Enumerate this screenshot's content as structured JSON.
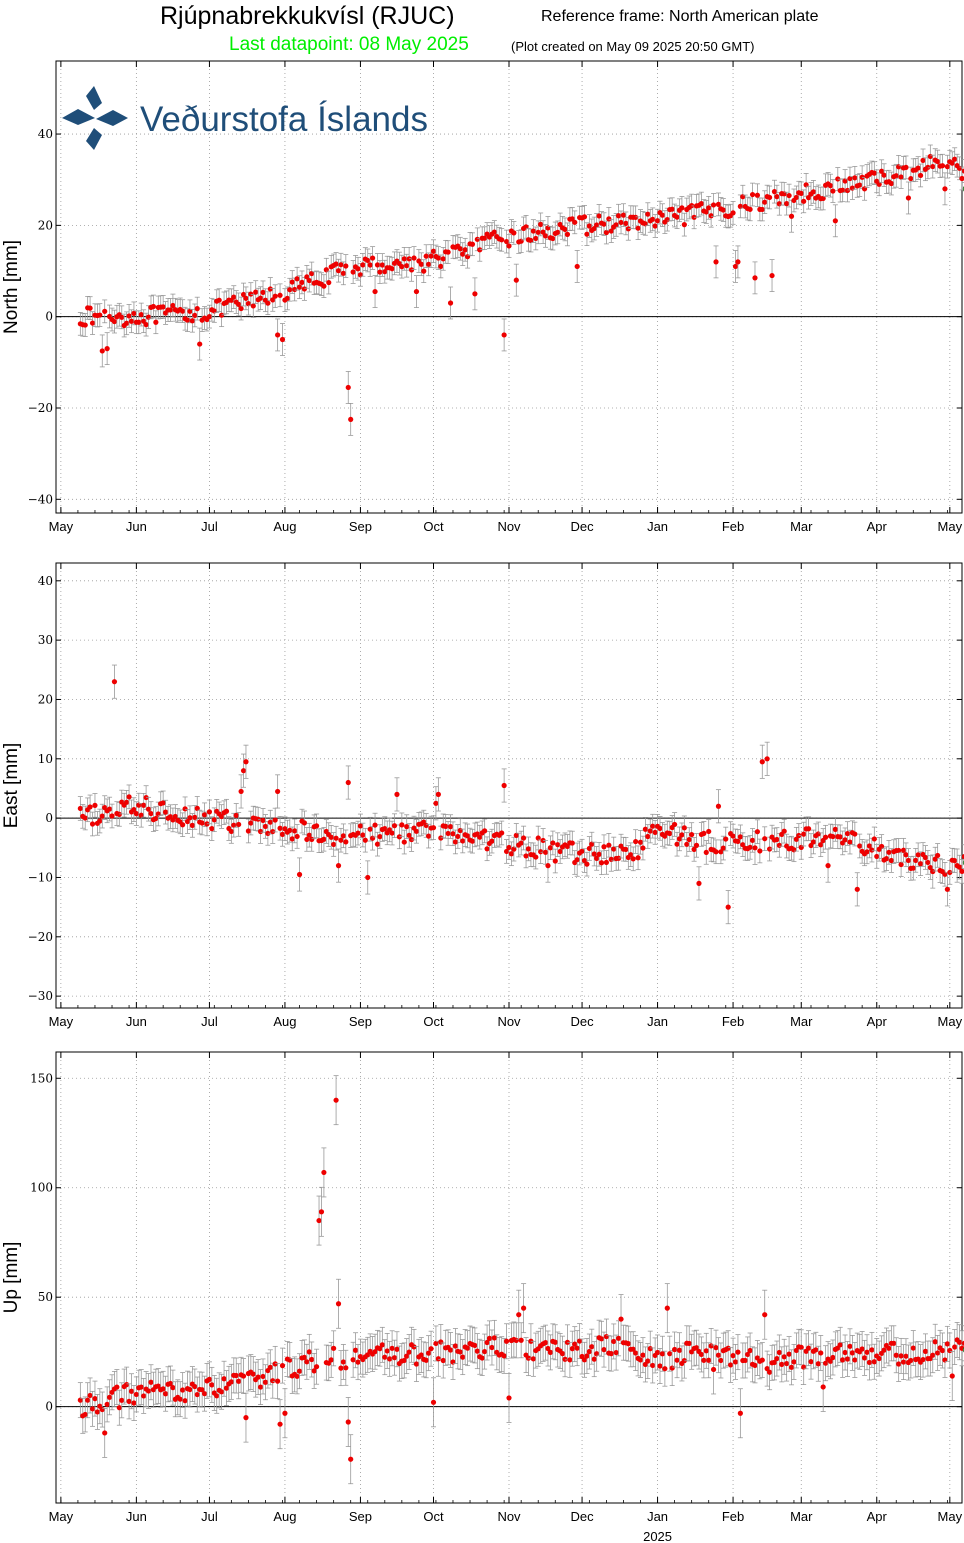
{
  "header": {
    "station_title": "Rjúpnabrekkukvísl (RJUC)",
    "reference_frame": "Reference frame: North American plate",
    "last_datapoint": "Last datapoint: 08 May 2025",
    "plot_created": "(Plot created on May 09 2025 20:50 GMT)",
    "logo_text": "Veðurstofa Íslands"
  },
  "colors": {
    "data_point": "#ee0000",
    "last_point": "#88ee88",
    "error_bar": "#999999",
    "grid": "#999999",
    "last_datapoint_text": "#00ee00",
    "logo": "#1f4e79"
  },
  "icons": [
    "vedurstofa-logo-icon"
  ],
  "chart_data": [
    {
      "type": "scatter",
      "panel": "north",
      "ylabel": "North [mm]",
      "ylim": [
        -43,
        56
      ],
      "yticks": [
        -40,
        -20,
        0,
        20,
        40
      ],
      "xlabel": "",
      "xticks": [
        "May",
        "Jun",
        "Jul",
        "Aug",
        "Sep",
        "Oct",
        "Nov",
        "Dec",
        "Jan",
        "Feb",
        "Mar",
        "Apr",
        "May"
      ],
      "xlim_days": [
        -2,
        370
      ],
      "grid": true,
      "zero_line": true,
      "error_bar_mm": 2.5,
      "anchors": [
        [
          8,
          0
        ],
        [
          30,
          0
        ],
        [
          60,
          1
        ],
        [
          90,
          5
        ],
        [
          100,
          7
        ],
        [
          120,
          11
        ],
        [
          150,
          12
        ],
        [
          180,
          17
        ],
        [
          215,
          20
        ],
        [
          245,
          21
        ],
        [
          275,
          24
        ],
        [
          305,
          27
        ],
        [
          335,
          30
        ],
        [
          362,
          34
        ],
        [
          370,
          32
        ]
      ],
      "noise_amp": 2,
      "outliers": [
        [
          17,
          -7.5
        ],
        [
          19,
          -7
        ],
        [
          57,
          -6
        ],
        [
          89,
          -4
        ],
        [
          91,
          -5
        ],
        [
          118,
          -15.5
        ],
        [
          119,
          -22.5
        ],
        [
          129,
          5.5
        ],
        [
          146,
          5.5
        ],
        [
          160,
          3
        ],
        [
          170,
          5
        ],
        [
          182,
          -4
        ],
        [
          187,
          8
        ],
        [
          212,
          11
        ],
        [
          269,
          12
        ],
        [
          277,
          11
        ],
        [
          278,
          12
        ],
        [
          285,
          8.5
        ],
        [
          292,
          9
        ],
        [
          300,
          22
        ],
        [
          318,
          21
        ],
        [
          348,
          26
        ],
        [
          363,
          28
        ]
      ],
      "last_point": {
        "day": 372,
        "value": 28
      }
    },
    {
      "type": "scatter",
      "panel": "east",
      "ylabel": "East [mm]",
      "ylim": [
        -32,
        43
      ],
      "yticks": [
        -30,
        -20,
        -10,
        0,
        10,
        20,
        30,
        40
      ],
      "xlabel": "",
      "xticks": [
        "May",
        "Jun",
        "Jul",
        "Aug",
        "Sep",
        "Oct",
        "Nov",
        "Dec",
        "Jan",
        "Feb",
        "Mar",
        "Apr",
        "May"
      ],
      "xlim_days": [
        -2,
        370
      ],
      "grid": true,
      "zero_line": true,
      "error_bar_mm": 2,
      "anchors": [
        [
          8,
          0
        ],
        [
          30,
          2
        ],
        [
          60,
          0
        ],
        [
          90,
          -2
        ],
        [
          120,
          -3
        ],
        [
          150,
          -2
        ],
        [
          180,
          -4
        ],
        [
          210,
          -6
        ],
        [
          235,
          -6
        ],
        [
          245,
          -1
        ],
        [
          260,
          -4
        ],
        [
          290,
          -4
        ],
        [
          320,
          -3
        ],
        [
          345,
          -7
        ],
        [
          370,
          -8
        ]
      ],
      "noise_amp": 1.8,
      "outliers": [
        [
          22,
          23
        ],
        [
          74,
          4.5
        ],
        [
          75,
          8
        ],
        [
          76,
          9.5
        ],
        [
          89,
          4.5
        ],
        [
          98,
          -9.5
        ],
        [
          114,
          -8
        ],
        [
          118,
          6
        ],
        [
          126,
          -10
        ],
        [
          138,
          4
        ],
        [
          154,
          2.5
        ],
        [
          155,
          4
        ],
        [
          182,
          5.5
        ],
        [
          200,
          -8
        ],
        [
          212,
          -7
        ],
        [
          262,
          -11
        ],
        [
          270,
          2
        ],
        [
          274,
          -15
        ],
        [
          285,
          -5
        ],
        [
          288,
          9.5
        ],
        [
          290,
          10
        ],
        [
          315,
          -8
        ],
        [
          327,
          -12
        ],
        [
          358,
          -9
        ],
        [
          364,
          -12
        ],
        [
          368,
          -8
        ]
      ],
      "last_point": {
        "day": 372,
        "value": -7.5
      }
    },
    {
      "type": "scatter",
      "panel": "up",
      "ylabel": "Up [mm]",
      "ylim": [
        -44,
        162
      ],
      "yticks": [
        0,
        50,
        100,
        150
      ],
      "xlabel": "2025",
      "xticks": [
        "May",
        "Jun",
        "Jul",
        "Aug",
        "Sep",
        "Oct",
        "Nov",
        "Dec",
        "Jan",
        "Feb",
        "Mar",
        "Apr",
        "May"
      ],
      "xlim_days": [
        -2,
        370
      ],
      "grid": true,
      "zero_line": true,
      "error_bar_mm": 8,
      "anchors": [
        [
          8,
          0
        ],
        [
          30,
          6
        ],
        [
          60,
          8
        ],
        [
          80,
          12
        ],
        [
          100,
          20
        ],
        [
          120,
          23
        ],
        [
          150,
          24
        ],
        [
          180,
          27
        ],
        [
          210,
          25
        ],
        [
          230,
          28
        ],
        [
          245,
          20
        ],
        [
          260,
          26
        ],
        [
          290,
          20
        ],
        [
          320,
          26
        ],
        [
          345,
          24
        ],
        [
          370,
          26
        ]
      ],
      "noise_amp": 5,
      "outliers": [
        [
          18,
          -12
        ],
        [
          76,
          -5
        ],
        [
          90,
          -8
        ],
        [
          92,
          -3
        ],
        [
          106,
          85
        ],
        [
          107,
          89
        ],
        [
          108,
          107
        ],
        [
          113,
          140
        ],
        [
          114,
          47
        ],
        [
          118,
          -7
        ],
        [
          119,
          -24
        ],
        [
          153,
          2
        ],
        [
          184,
          4
        ],
        [
          188,
          42
        ],
        [
          190,
          45
        ],
        [
          230,
          40
        ],
        [
          249,
          45
        ],
        [
          268,
          17
        ],
        [
          279,
          -3
        ],
        [
          289,
          42
        ],
        [
          313,
          9
        ],
        [
          366,
          14
        ]
      ],
      "last_point": {
        "day": 372,
        "value": 26
      }
    }
  ]
}
